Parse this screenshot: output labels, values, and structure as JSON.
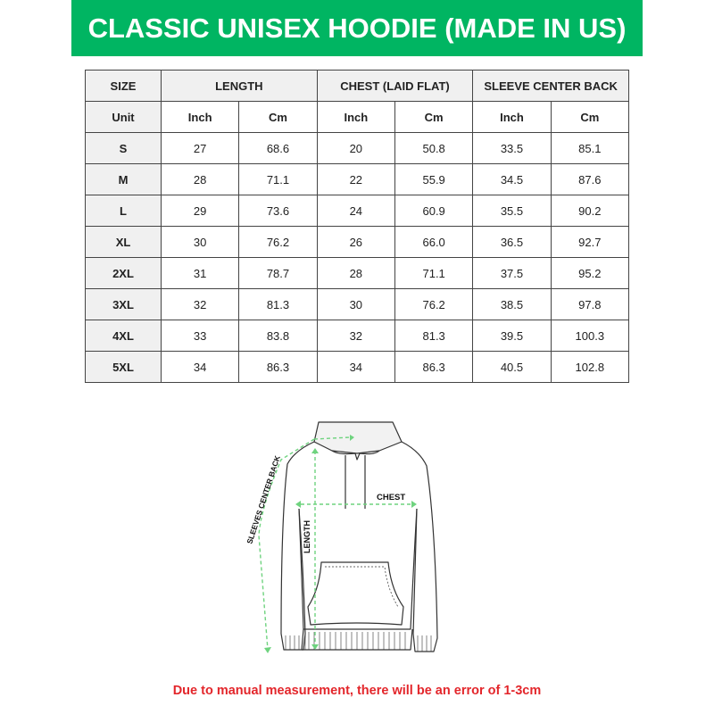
{
  "title": "CLASSIC UNISEX HOODIE (MADE IN US)",
  "colors": {
    "banner": "#00b562",
    "note": "#e3262b",
    "measure_lines": "#6fd37f"
  },
  "table": {
    "headers": [
      "SIZE",
      "LENGTH",
      "CHEST (LAID FLAT)",
      "SLEEVE CENTER BACK"
    ],
    "units": [
      "Unit",
      "Inch",
      "Cm",
      "Inch",
      "Cm",
      "Inch",
      "Cm"
    ],
    "rows": [
      [
        "S",
        "27",
        "68.6",
        "20",
        "50.8",
        "33.5",
        "85.1"
      ],
      [
        "M",
        "28",
        "71.1",
        "22",
        "55.9",
        "34.5",
        "87.6"
      ],
      [
        "L",
        "29",
        "73.6",
        "24",
        "60.9",
        "35.5",
        "90.2"
      ],
      [
        "XL",
        "30",
        "76.2",
        "26",
        "66.0",
        "36.5",
        "92.7"
      ],
      [
        "2XL",
        "31",
        "78.7",
        "28",
        "71.1",
        "37.5",
        "95.2"
      ],
      [
        "3XL",
        "32",
        "81.3",
        "30",
        "76.2",
        "38.5",
        "97.8"
      ],
      [
        "4XL",
        "33",
        "83.8",
        "32",
        "81.3",
        "39.5",
        "100.3"
      ],
      [
        "5XL",
        "34",
        "86.3",
        "34",
        "86.3",
        "40.5",
        "102.8"
      ]
    ]
  },
  "diagram": {
    "chest_label": "CHEST",
    "length_label": "LENGTH",
    "sleeve_label": "SLEEVES CENTER BACK"
  },
  "note": "Due to manual measurement, there will be an error of 1-3cm"
}
